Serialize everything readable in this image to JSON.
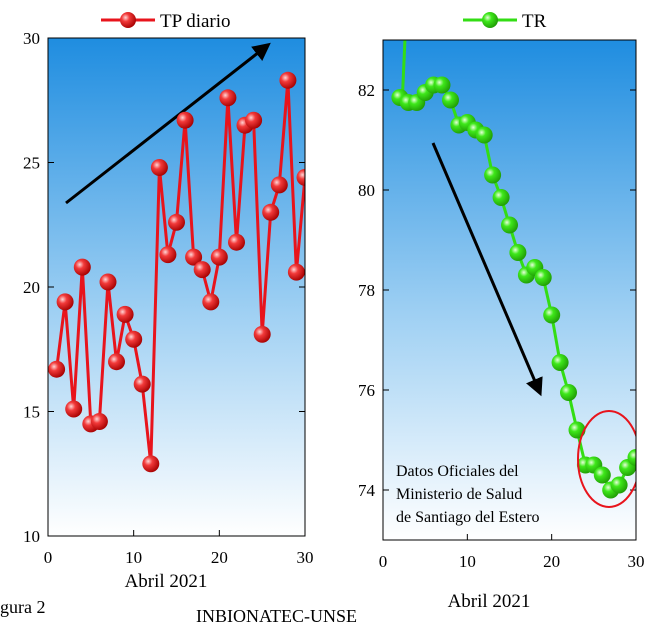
{
  "figure_label_fragment": "gura 2",
  "credit": "INBIONATEC-UNSE",
  "annotation": [
    "Datos Oficiales del",
    "Ministerio de Salud",
    "de Santiago del Estero"
  ],
  "colors": {
    "tp": "#e8141c",
    "tr": "#33dd14",
    "arrow": "#000000",
    "circle": "#e8141c",
    "bg_top": "#1f8de0",
    "bg_bottom": "#ffffff"
  },
  "chart_data": [
    {
      "type": "line",
      "legend_position": "top",
      "xlabel": "Abril 2021",
      "ylabel": "",
      "xlim": [
        0,
        30
      ],
      "ylim": [
        10,
        30
      ],
      "xticks": [
        "0",
        "10",
        "20",
        "30"
      ],
      "yticks": [
        "10",
        "15",
        "20",
        "25",
        "30"
      ],
      "series": [
        {
          "name": "TP diario",
          "x": [
            1,
            2,
            3,
            4,
            5,
            6,
            7,
            8,
            9,
            10,
            11,
            12,
            13,
            14,
            15,
            16,
            17,
            18,
            19,
            20,
            21,
            22,
            23,
            24,
            25,
            26,
            27,
            28,
            29,
            30
          ],
          "y": [
            16.7,
            19.4,
            15.1,
            20.8,
            14.5,
            14.6,
            20.2,
            17.0,
            18.9,
            17.9,
            16.1,
            12.9,
            24.8,
            21.3,
            22.6,
            26.7,
            21.2,
            20.7,
            19.4,
            21.2,
            27.6,
            21.8,
            26.5,
            26.7,
            18.1,
            23.0,
            24.1,
            28.3,
            20.6,
            24.4
          ]
        }
      ]
    },
    {
      "type": "line",
      "legend_position": "top",
      "xlabel": "Abril 2021",
      "ylabel": "",
      "xlim": [
        0,
        30
      ],
      "ylim": [
        73,
        83
      ],
      "xticks": [
        "0",
        "10",
        "20",
        "30"
      ],
      "yticks": [
        "74",
        "76",
        "78",
        "80",
        "82"
      ],
      "series": [
        {
          "name": "TR",
          "x": [
            2,
            3,
            4,
            5,
            6,
            7,
            8,
            9,
            10,
            11,
            12,
            13,
            14,
            15,
            16,
            17,
            18,
            19,
            20,
            21,
            22,
            23,
            24,
            25,
            26,
            27,
            28,
            29,
            30
          ],
          "y": [
            81.85,
            81.75,
            81.75,
            81.95,
            82.1,
            82.1,
            81.8,
            81.3,
            81.35,
            81.2,
            81.1,
            80.3,
            79.85,
            79.3,
            78.75,
            78.3,
            78.45,
            78.25,
            77.5,
            76.55,
            75.95,
            75.2,
            74.5,
            74.5,
            74.3,
            74.0,
            74.1,
            74.45,
            74.65
          ]
        }
      ]
    }
  ]
}
